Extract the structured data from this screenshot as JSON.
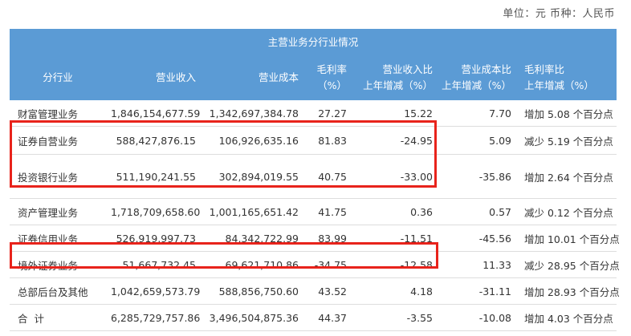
{
  "unit_line": "单位：元  币种：人民币",
  "table": {
    "title": "主营业务分行业情况",
    "headers": [
      [
        "分行业"
      ],
      [
        "营业收入"
      ],
      [
        "营业成本"
      ],
      [
        "毛利率",
        "（%）"
      ],
      [
        "营业收入比",
        "上年增减（%）"
      ],
      [
        "营业成本比",
        "上年增减（%）"
      ],
      [
        "毛利率比",
        "上年增减（%）"
      ]
    ],
    "rows": [
      [
        "财富管理业务",
        "1,846,154,677.59",
        "1,342,697,384.78",
        "27.27",
        "15.22",
        "7.70",
        "增加 5.08 个百分点"
      ],
      [
        "证券自营业务",
        "588,427,876.15",
        "106,926,635.16",
        "81.83",
        "-24.95",
        "5.09",
        "减少 5.19 个百分点"
      ],
      [
        "投资银行业务",
        "511,190,241.55",
        "302,894,019.55",
        "40.75",
        "-33.00",
        "-35.86",
        "增加 2.64 个百分点"
      ],
      [
        "资产管理业务",
        "1,718,709,658.60",
        "1,001,165,651.42",
        "41.75",
        "0.36",
        "0.57",
        "减少 0.12 个百分点"
      ],
      [
        "证券信用业务",
        "526,919,997.73",
        "84,342,722.99",
        "83.99",
        "-11.51",
        "-45.56",
        "增加 10.01 个百分点"
      ],
      [
        "境外证券业务",
        "51,667,732.45",
        "69,621,710.86",
        "-34.75",
        "-12.58",
        "11.33",
        "减少 28.95 个百分点"
      ],
      [
        "总部后台及其他",
        "1,042,659,573.79",
        "588,856,750.60",
        "43.52",
        "4.18",
        "-31.11",
        "增加 28.93 个百分点"
      ],
      [
        "合  计",
        "6,285,729,757.86",
        "3,496,504,875.36",
        "44.37",
        "-3.55",
        "-10.08",
        "增加 4.03 个百分点"
      ]
    ]
  },
  "colors": {
    "header_bg": "#5b9bd5",
    "highlight_box": "#e8231b"
  }
}
